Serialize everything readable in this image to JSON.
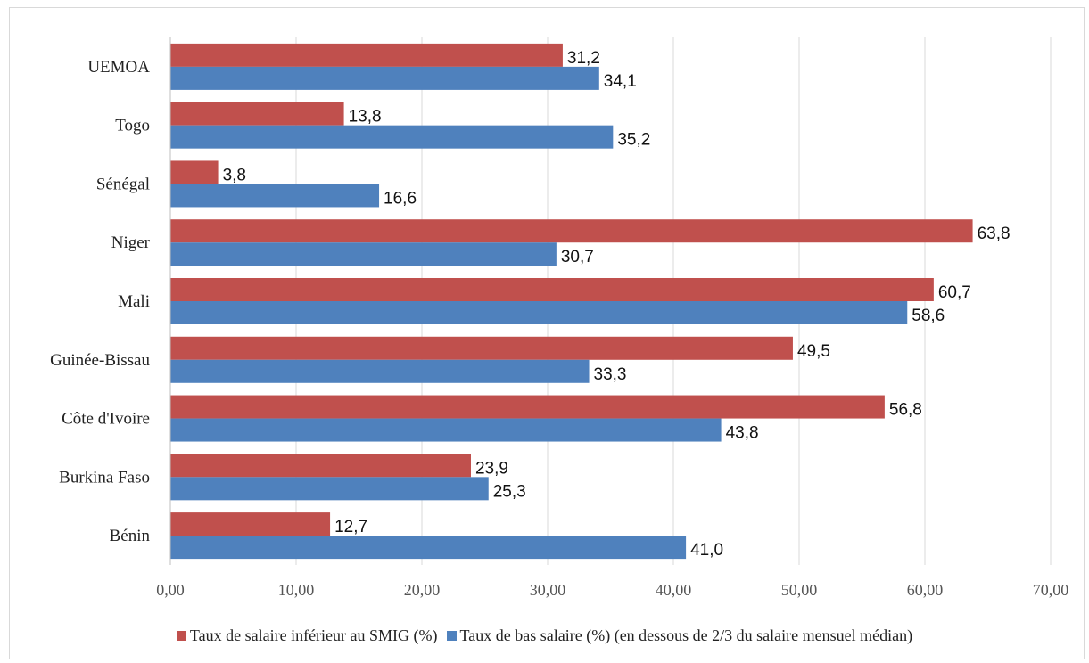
{
  "page_title": "",
  "chart_data": {
    "type": "bar",
    "orientation": "horizontal",
    "categories": [
      "UEMOA",
      "Togo",
      "Sénégal",
      "Niger",
      "Mali",
      "Guinée-Bissau",
      "Côte d'Ivoire",
      "Burkina Faso",
      "Bénin"
    ],
    "series": [
      {
        "name": "Taux de salaire inférieur au SMIG (%)",
        "color": "#c0504d",
        "values": [
          31.2,
          13.8,
          3.8,
          63.8,
          60.7,
          49.5,
          56.8,
          23.9,
          12.7
        ],
        "labels": [
          "31,2",
          "13,8",
          "3,8",
          "63,8",
          "60,7",
          "49,5",
          "56,8",
          "23,9",
          "12,7"
        ]
      },
      {
        "name": "Taux de bas salaire (%) (en dessous de 2/3 du salaire mensuel médian)",
        "color": "#4f81bd",
        "values": [
          34.1,
          35.2,
          16.6,
          30.7,
          58.6,
          33.3,
          43.8,
          25.3,
          41.0
        ],
        "labels": [
          "34,1",
          "35,2",
          "16,6",
          "30,7",
          "58,6",
          "33,3",
          "43,8",
          "25,3",
          "41,0"
        ]
      }
    ],
    "xlim": [
      0,
      70
    ],
    "xticks": [
      0,
      10,
      20,
      30,
      40,
      50,
      60,
      70
    ],
    "xtick_labels": [
      "0,00",
      "10,00",
      "20,00",
      "30,00",
      "40,00",
      "50,00",
      "60,00",
      "70,00"
    ],
    "grid": true,
    "gridline_color": "#d9d9d9",
    "legend_position": "bottom",
    "title": "",
    "xlabel": "",
    "ylabel": ""
  }
}
